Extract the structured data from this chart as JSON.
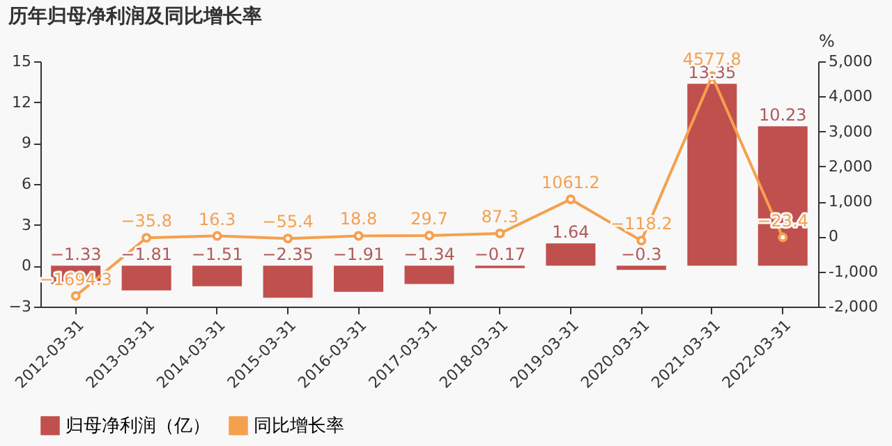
{
  "chart_data": {
    "type": "bar",
    "title": "历年归母净利润及同比增长率",
    "categories": [
      "2012-03-31",
      "2013-03-31",
      "2014-03-31",
      "2015-03-31",
      "2016-03-31",
      "2017-03-31",
      "2018-03-31",
      "2019-03-31",
      "2020-03-31",
      "2021-03-31",
      "2022-03-31"
    ],
    "series": [
      {
        "name": "归母净利润（亿）",
        "color": "#c0504d",
        "values": [
          -1.33,
          -1.81,
          -1.51,
          -2.35,
          -1.91,
          -1.34,
          -0.17,
          1.64,
          -0.3,
          13.35,
          10.23
        ]
      },
      {
        "name": "同比增长率",
        "type": "line",
        "axis": "y2",
        "color": "#f5a04f",
        "marker": "circle",
        "values": [
          -1694.3,
          -35.8,
          16.3,
          -55.4,
          18.8,
          29.7,
          87.3,
          1061.2,
          -118.2,
          4577.8,
          -23.4
        ]
      }
    ],
    "ylim": [
      -3,
      15
    ],
    "yticks": [
      -3,
      0,
      3,
      6,
      9,
      12,
      15
    ],
    "y2label": "%",
    "y2lim": [
      -2000,
      5000
    ],
    "y2ticks": [
      {
        "value": -2000,
        "label": "-2,000"
      },
      {
        "value": -1000,
        "label": "-1,000"
      },
      0,
      {
        "value": 1000,
        "label": "1,000"
      },
      {
        "value": 2000,
        "label": "2,000"
      },
      {
        "value": 3000,
        "label": "3,000"
      },
      {
        "value": 4000,
        "label": "4,000"
      },
      {
        "value": 5000,
        "label": "5,000"
      }
    ],
    "data_labels": true,
    "grid": false,
    "legend": "bottom"
  }
}
